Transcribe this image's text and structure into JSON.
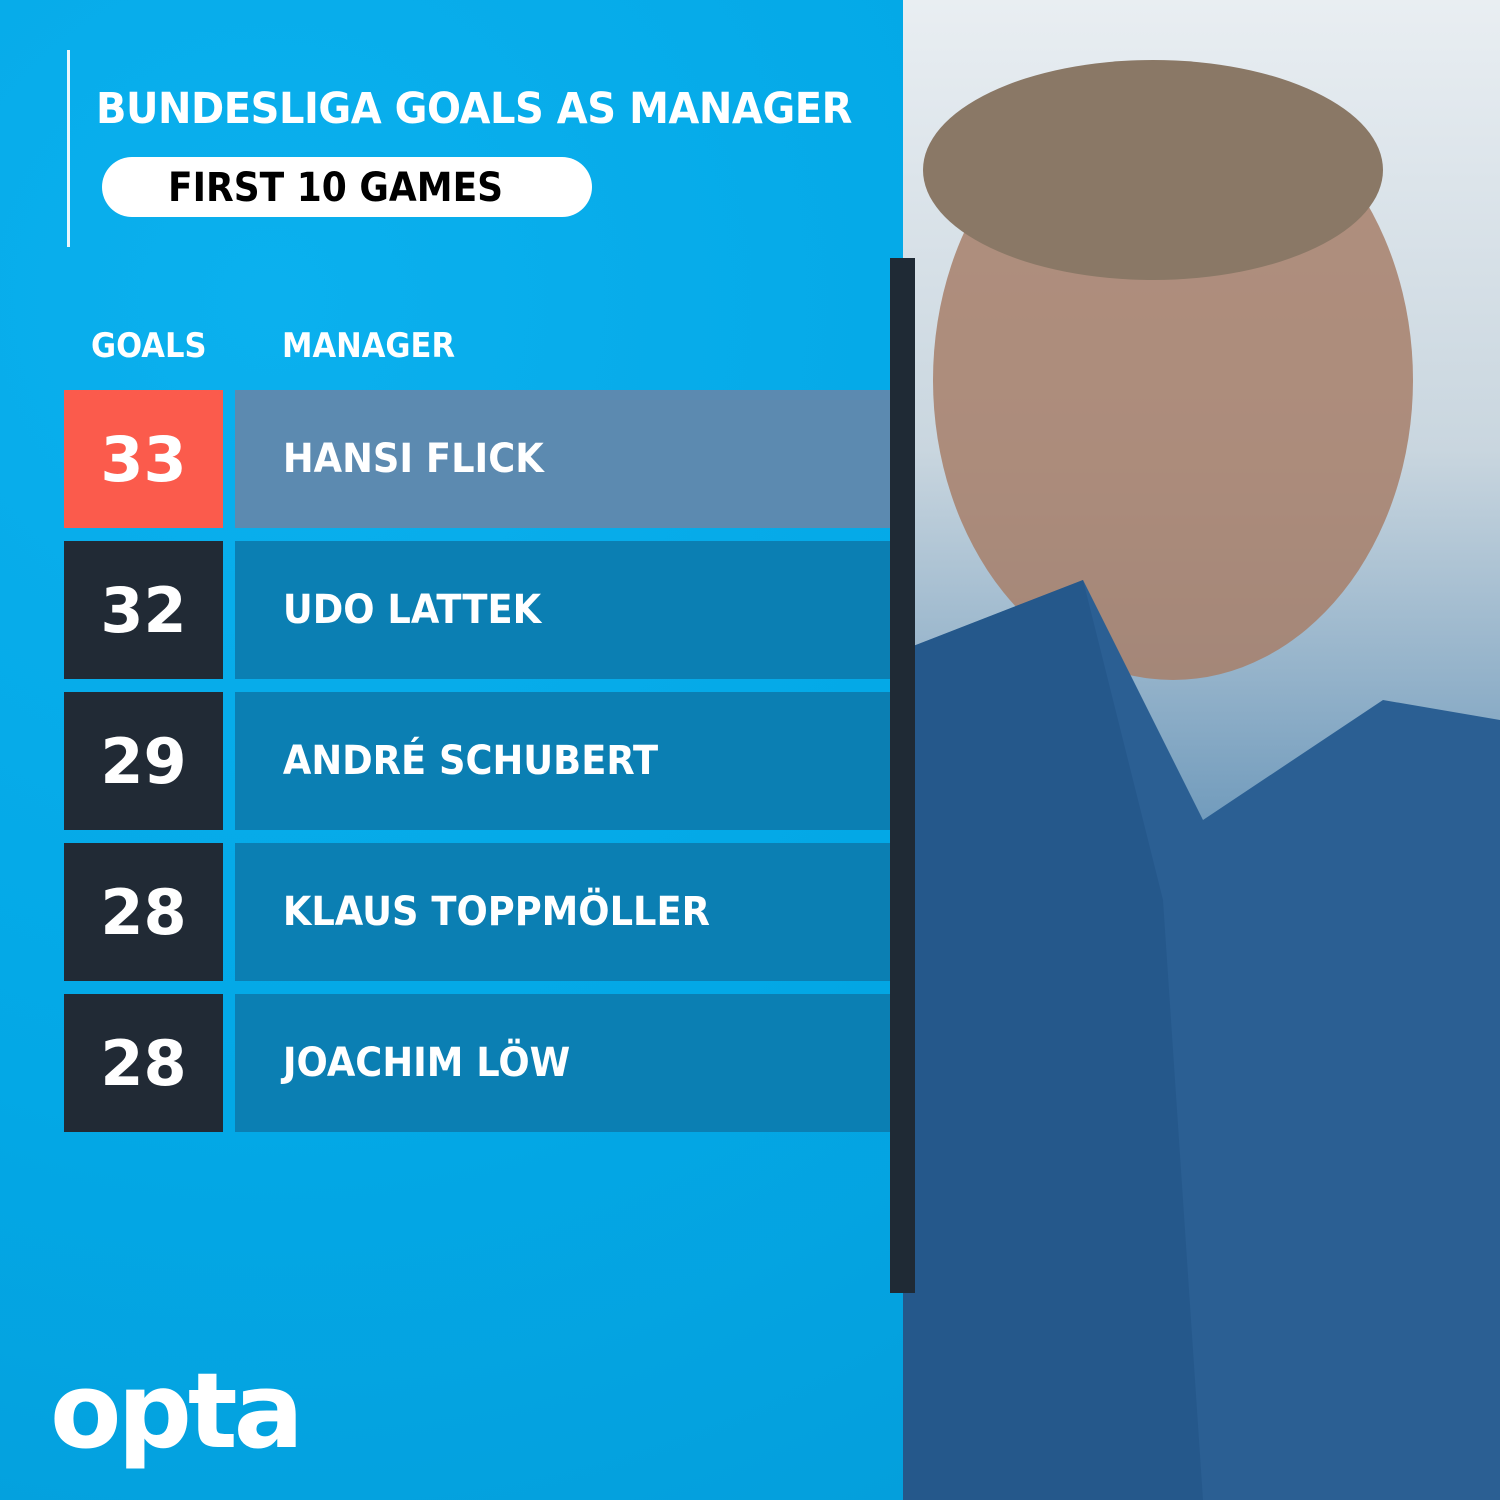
{
  "title": "BUNDESLIGA GOALS AS MANAGER",
  "subtitle": "FIRST 10 GAMES",
  "brand": "opta",
  "colors": {
    "background": "#03a9e8",
    "highlight_goals": "#fb5b4c",
    "highlight_name": "#5c8ab0",
    "goals_box": "#212a35",
    "name_box": "#0b7fb3"
  },
  "chart_data": {
    "type": "table",
    "title": "BUNDESLIGA GOALS AS MANAGER",
    "subtitle": "FIRST 10 GAMES",
    "columns": [
      "GOALS",
      "MANAGER"
    ],
    "rows": [
      {
        "goals": 33,
        "manager": "HANSI FLICK",
        "highlight": true
      },
      {
        "goals": 32,
        "manager": "UDO LATTEK",
        "highlight": false
      },
      {
        "goals": 29,
        "manager": "ANDRÉ SCHUBERT",
        "highlight": false
      },
      {
        "goals": 28,
        "manager": "KLAUS TOPPMÖLLER",
        "highlight": false
      },
      {
        "goals": 28,
        "manager": "JOACHIM LÖW",
        "highlight": false
      }
    ]
  }
}
